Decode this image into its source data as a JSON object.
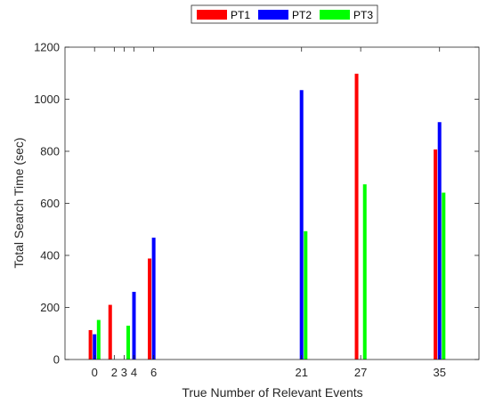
{
  "chart_data": {
    "type": "bar",
    "title": "",
    "xlabel": "True Number of Relevant Events",
    "ylabel": "Total Search Time (sec)",
    "xlim": [
      -3,
      39
    ],
    "ylim": [
      0,
      1200
    ],
    "x_ticks": [
      0,
      2,
      3,
      4,
      6,
      21,
      27,
      35
    ],
    "y_ticks": [
      0,
      200,
      400,
      600,
      800,
      1000,
      1200
    ],
    "grid": false,
    "legend_position": "top-center",
    "series": [
      {
        "name": "PT1",
        "color": "#ff0000",
        "points": [
          {
            "x": 0,
            "y": 113
          },
          {
            "x": 2,
            "y": 210
          },
          {
            "x": 3,
            "y": 0
          },
          {
            "x": 4,
            "y": 0
          },
          {
            "x": 6,
            "y": 388
          },
          {
            "x": 21,
            "y": 0
          },
          {
            "x": 27,
            "y": 1098
          },
          {
            "x": 35,
            "y": 807
          }
        ]
      },
      {
        "name": "PT2",
        "color": "#0000ff",
        "points": [
          {
            "x": 0,
            "y": 97
          },
          {
            "x": 2,
            "y": 0
          },
          {
            "x": 3,
            "y": 0
          },
          {
            "x": 4,
            "y": 260
          },
          {
            "x": 6,
            "y": 468
          },
          {
            "x": 21,
            "y": 1035
          },
          {
            "x": 27,
            "y": 0
          },
          {
            "x": 35,
            "y": 912
          }
        ]
      },
      {
        "name": "PT3",
        "color": "#00ff00",
        "points": [
          {
            "x": 0,
            "y": 152
          },
          {
            "x": 2,
            "y": 0
          },
          {
            "x": 3,
            "y": 130
          },
          {
            "x": 4,
            "y": 0
          },
          {
            "x": 6,
            "y": 0
          },
          {
            "x": 21,
            "y": 493
          },
          {
            "x": 27,
            "y": 673
          },
          {
            "x": 35,
            "y": 641
          }
        ]
      }
    ]
  }
}
